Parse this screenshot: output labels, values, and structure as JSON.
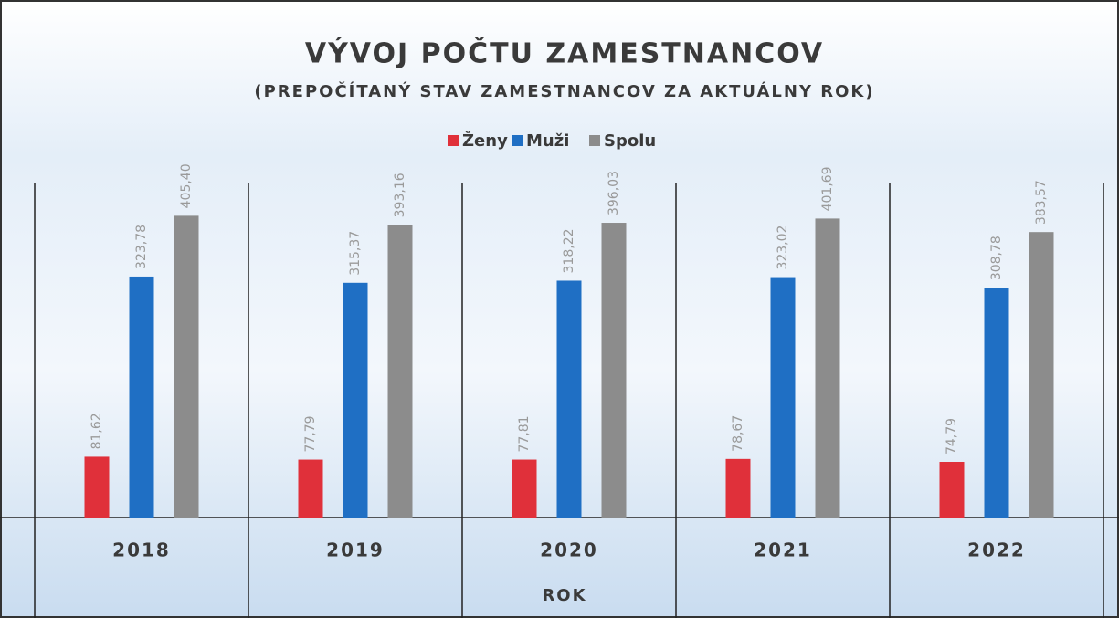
{
  "chart_data": {
    "type": "bar",
    "title": "VÝVOJ POČTU ZAMESTNANCOV",
    "subtitle": "(PREPOČÍTANÝ STAV ZAMESTNANCOV ZA AKTUÁLNY ROK)",
    "x_label": "ROK",
    "categories": [
      "2018",
      "2019",
      "2020",
      "2021",
      "2022"
    ],
    "series": [
      {
        "name": "Ženy",
        "color": "#e0303a",
        "values": [
          81.62,
          77.79,
          77.81,
          78.67,
          74.79
        ],
        "value_labels": [
          "81,62",
          "77,79",
          "77,81",
          "78,67",
          "74,79"
        ]
      },
      {
        "name": "Muži",
        "color": "#1f6fc4",
        "values": [
          323.78,
          315.37,
          318.22,
          323.02,
          308.78
        ],
        "value_labels": [
          "323,78",
          "315,37",
          "318,22",
          "323,02",
          "308,78"
        ]
      },
      {
        "name": "Spolu",
        "color": "#8c8c8c",
        "values": [
          405.4,
          393.16,
          396.03,
          401.69,
          383.57
        ],
        "value_labels": [
          "405,40",
          "393,16",
          "396,03",
          "401,69",
          "383,57"
        ]
      }
    ],
    "ylim": [
      0,
      450
    ]
  }
}
